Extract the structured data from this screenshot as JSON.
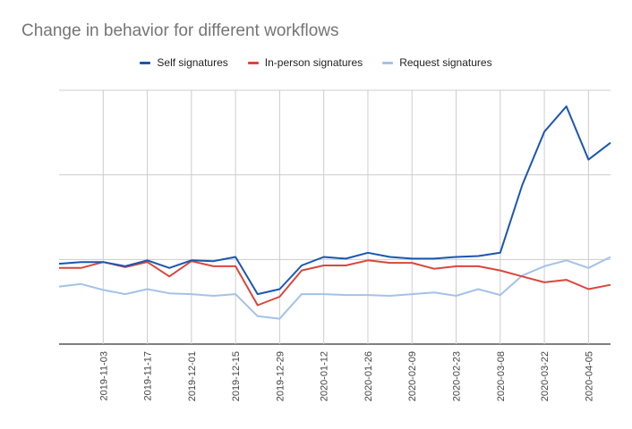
{
  "title": "Change in behavior for different workflows",
  "chart_data": {
    "type": "line",
    "title": "Change in behavior for different workflows",
    "xlabel": "",
    "ylabel": "",
    "ylim": [
      0,
      300
    ],
    "grid": true,
    "legend_position": "top",
    "x": [
      "2019-10-20",
      "2019-10-27",
      "2019-11-03",
      "2019-11-10",
      "2019-11-17",
      "2019-11-24",
      "2019-12-01",
      "2019-12-08",
      "2019-12-15",
      "2019-12-22",
      "2019-12-29",
      "2020-01-05",
      "2020-01-12",
      "2020-01-19",
      "2020-01-26",
      "2020-02-02",
      "2020-02-09",
      "2020-02-16",
      "2020-02-23",
      "2020-03-01",
      "2020-03-08",
      "2020-03-15",
      "2020-03-22",
      "2020-03-29",
      "2020-04-05",
      "2020-04-12"
    ],
    "tick_labels": [
      "2019-11-03",
      "2019-11-17",
      "2019-12-01",
      "2019-12-15",
      "2019-12-29",
      "2020-01-12",
      "2020-01-26",
      "2020-02-09",
      "2020-02-23",
      "2020-03-08",
      "2020-03-22",
      "2020-04-05"
    ],
    "series": [
      {
        "name": "Self signatures",
        "color": "#1a56b0",
        "values": [
          95,
          97,
          97,
          92,
          99,
          90,
          99,
          98,
          103,
          59,
          65,
          93,
          103,
          101,
          108,
          103,
          101,
          101,
          103,
          104,
          108,
          188,
          251,
          281,
          218,
          238
        ]
      },
      {
        "name": "In-person signatures",
        "color": "#d9473b",
        "values": [
          90,
          90,
          97,
          91,
          97,
          80,
          98,
          92,
          92,
          46,
          56,
          87,
          93,
          93,
          99,
          96,
          96,
          89,
          92,
          92,
          87,
          80,
          73,
          76,
          65,
          70
        ]
      },
      {
        "name": "Request signatures",
        "color": "#a4c2e8",
        "values": [
          68,
          71,
          64,
          59,
          65,
          60,
          59,
          57,
          59,
          33,
          30,
          59,
          59,
          58,
          58,
          57,
          59,
          61,
          57,
          65,
          58,
          81,
          92,
          99,
          90,
          103
        ]
      }
    ]
  }
}
